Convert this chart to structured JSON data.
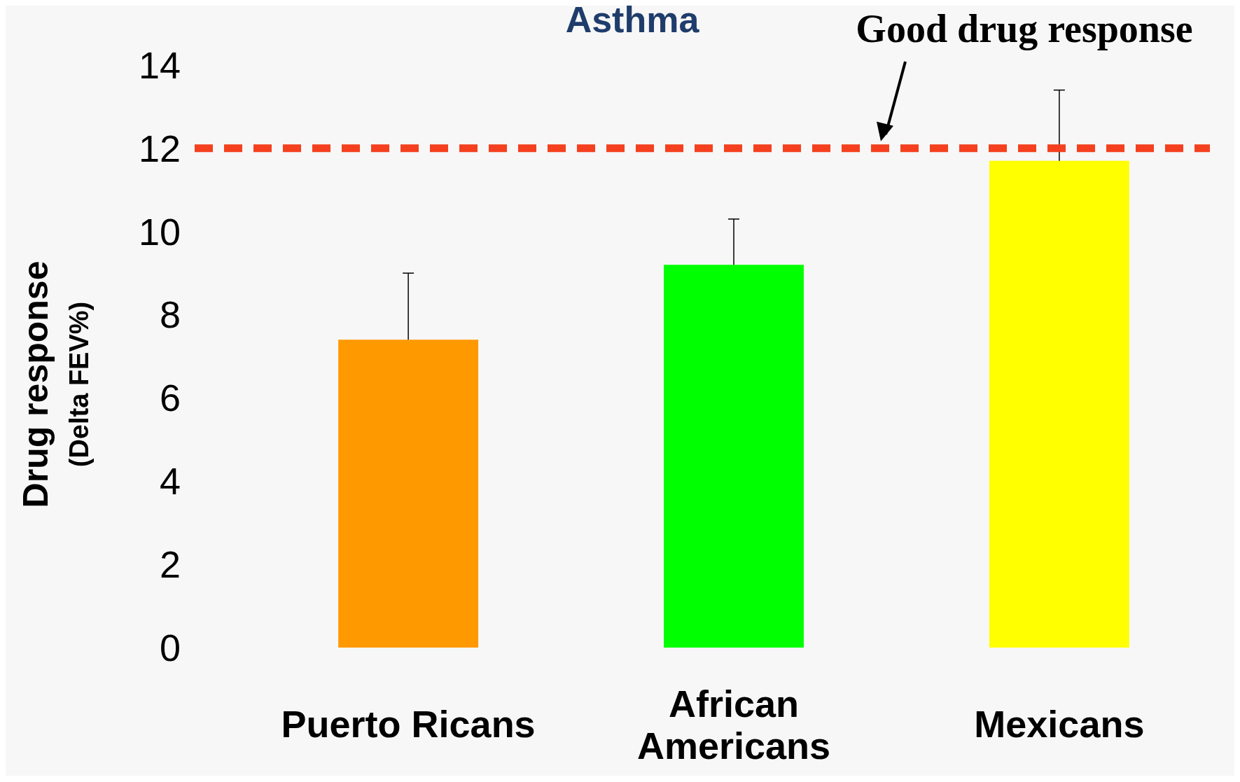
{
  "chart_data": {
    "type": "bar",
    "title": "Asthma",
    "ylabel": "Drug response\n(Delta FEV%)",
    "categories": [
      "Puerto Ricans",
      "African\nAmericans",
      "Mexicans"
    ],
    "values": [
      7.4,
      9.2,
      11.7
    ],
    "colors": [
      "#ff9900",
      "#00ff00",
      "#ffff00"
    ],
    "errors": [
      [
        7.4,
        9.0
      ],
      [
        9.2,
        10.3
      ],
      [
        11.7,
        13.4
      ]
    ],
    "ylim": [
      0,
      14
    ],
    "yticks": [
      0,
      2,
      4,
      6,
      8,
      10,
      12,
      14
    ],
    "ref_lines": [
      {
        "axis": "y",
        "value": 12,
        "label": "Good drug response",
        "color": "#f4401e",
        "line_style": "dashed"
      }
    ],
    "grid": false
  }
}
